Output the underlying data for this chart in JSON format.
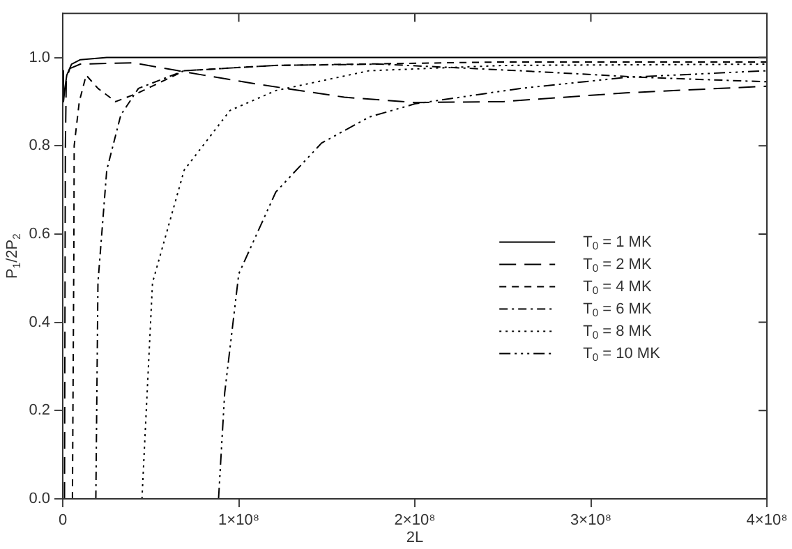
{
  "chart_data": {
    "type": "line",
    "xlabel": "2L",
    "ylabel": "P$_{1}$/2P$_{2}$",
    "xlim": [
      0,
      400000000
    ],
    "ylim": [
      0,
      1.1
    ],
    "xticks": [
      0,
      {
        "value": 100000000,
        "label": "1×10⁸"
      },
      {
        "value": 200000000,
        "label": "2×10⁸"
      },
      {
        "value": 300000000,
        "label": "3×10⁸"
      },
      {
        "value": 400000000,
        "label": "4×10⁸"
      }
    ],
    "yticks": [
      {
        "value": 0,
        "label": "0.0"
      },
      {
        "value": 0.2,
        "label": "0.2"
      },
      {
        "value": 0.4,
        "label": "0.4"
      },
      {
        "value": 0.6,
        "label": "0.6"
      },
      {
        "value": 0.8,
        "label": "0.8"
      },
      {
        "value": 1,
        "label": "1.0"
      }
    ],
    "grid": false,
    "legend": "right",
    "marker": "none",
    "series": [
      {
        "name": "T$_{0}$ = 1 MK",
        "color": "#000000",
        "line_style": "solid",
        "x": [
          0,
          400000,
          1200000,
          2300000,
          5000000,
          10000000,
          25000000,
          400000000
        ],
        "values": [
          0.97,
          0.9,
          0.93,
          0.96,
          0.985,
          0.995,
          1.0,
          1.0
        ]
      },
      {
        "name": "T$_{0}$ = 2 MK",
        "color": "#000000",
        "line_style": "long_dashed",
        "x": [
          1000000,
          1500000,
          2000000,
          4000000,
          10000000,
          40000000,
          80000000,
          110000000,
          160000000,
          200000000,
          250000000,
          320000000,
          400000000
        ],
        "values": [
          0,
          0.8,
          0.95,
          0.975,
          0.985,
          0.988,
          0.96,
          0.94,
          0.91,
          0.898,
          0.9,
          0.92,
          0.935
        ]
      },
      {
        "name": "T$_{0}$ = 4 MK",
        "color": "#000000",
        "line_style": "dashed",
        "x": [
          5500000,
          6300000,
          6500000,
          9400000,
          13300000,
          20000000,
          30000000,
          43000000,
          69000000,
          120000000,
          250000000,
          400000000
        ],
        "values": [
          0,
          0.55,
          0.8,
          0.9,
          0.96,
          0.93,
          0.9,
          0.92,
          0.97,
          0.982,
          0.99,
          0.99
        ]
      },
      {
        "name": "T$_{0}$ = 6 MK",
        "color": "#000000",
        "line_style": "dash_dot",
        "x": [
          18800000,
          20000000,
          25000000,
          33000000,
          43000000,
          69000000,
          120000000,
          180000000,
          260000000,
          330000000,
          400000000
        ],
        "values": [
          0,
          0.49,
          0.745,
          0.87,
          0.93,
          0.97,
          0.982,
          0.985,
          0.97,
          0.955,
          0.945
        ]
      },
      {
        "name": "T$_{0}$ = 8 MK",
        "color": "#000000",
        "line_style": "dotted",
        "x": [
          45000000,
          51000000,
          69000000,
          95000000,
          121000000,
          174000000,
          250000000,
          400000000
        ],
        "values": [
          0,
          0.49,
          0.745,
          0.88,
          0.925,
          0.97,
          0.982,
          0.985
        ]
      },
      {
        "name": "T$_{0}$ = 10 MK",
        "color": "#000000",
        "line_style": "dash_dot_dot",
        "x": [
          88500000,
          92000000,
          100000000,
          121000000,
          147000000,
          174000000,
          200000000,
          260000000,
          320000000,
          400000000
        ],
        "values": [
          0,
          0.24,
          0.51,
          0.695,
          0.806,
          0.865,
          0.895,
          0.93,
          0.955,
          0.97
        ]
      }
    ]
  }
}
